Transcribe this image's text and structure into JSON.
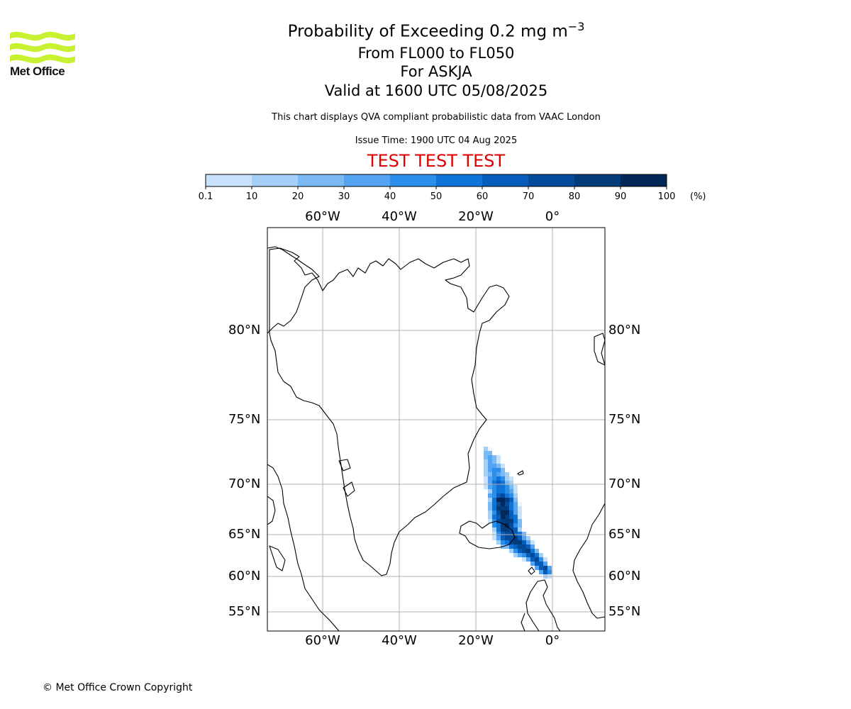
{
  "logo": {
    "name": "Met Office"
  },
  "title": {
    "main_prefix": "Probability of Exceeding 0.2 mg m",
    "main_sup": "−3",
    "line2": "From FL000 to FL050",
    "line3": "For ASKJA",
    "line4": "Valid at 1600 UTC 05/08/2025"
  },
  "note1": "This chart displays QVA compliant probabilistic data from VAAC London",
  "note2": "Issue Time: 1900 UTC 04 Aug 2025",
  "test_banner": "TEST TEST TEST",
  "colorbar": {
    "ticks": [
      "0.1",
      "10",
      "20",
      "30",
      "40",
      "50",
      "60",
      "70",
      "80",
      "90",
      "100"
    ],
    "unit": "(%)",
    "colors": [
      "#eef6ff",
      "#c9e2fb",
      "#a4cff8",
      "#7cbaf5",
      "#54a4f1",
      "#2b8eeb",
      "#0f74d8",
      "#065dbb",
      "#044a9a",
      "#033a7a",
      "#022858"
    ]
  },
  "map": {
    "lon_labels": [
      "60°W",
      "40°W",
      "20°W",
      "0°"
    ],
    "lat_labels": [
      "80°N",
      "75°N",
      "70°N",
      "65°N",
      "60°N",
      "55°N"
    ],
    "plume_peak_location": "Askja, Iceland",
    "plume_direction": "south-east"
  },
  "copyright": "© Met Office Crown Copyright"
}
